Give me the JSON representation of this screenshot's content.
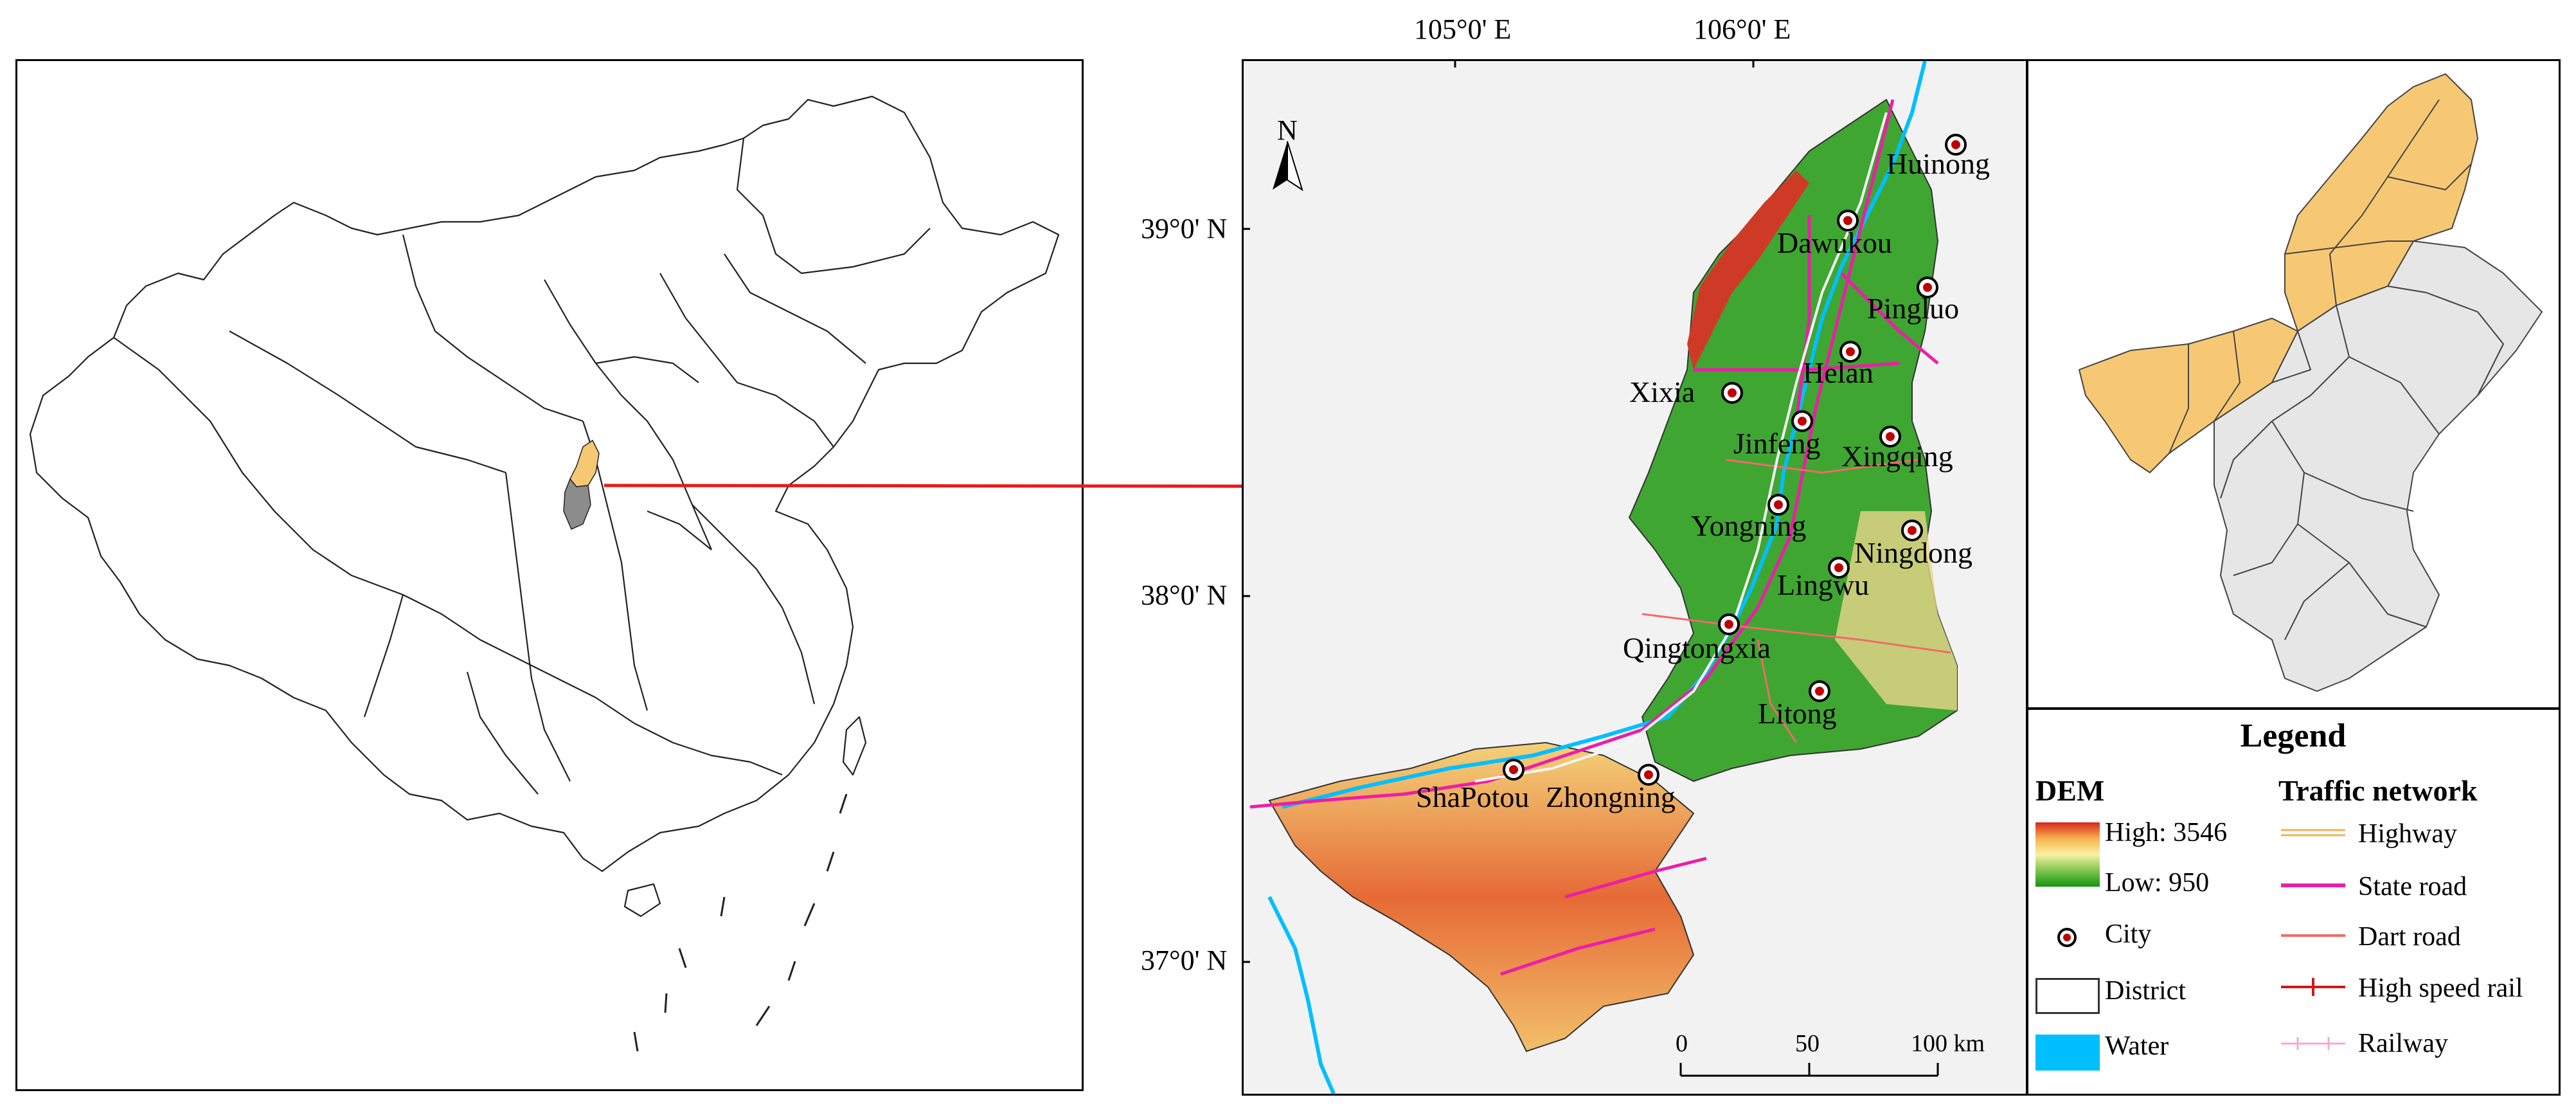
{
  "colors": {
    "highlight": "#f7c873",
    "grey_province": "#8c8c8c",
    "arrow": "#e8191a",
    "dem_high": "#d7261e",
    "dem_mid": "#f8f3a4",
    "dem_low": "#14960f",
    "water": "#00bfff",
    "state_road": "#ec1ea7",
    "dart_road": "#f06a6a",
    "high_speed_rail": "#d01818",
    "railway": "#f5a9d4",
    "highway": "#f0b356",
    "district_fill_grey": "#e6e6e6"
  },
  "map": {
    "north": "N",
    "lon_ticks": [
      "105°0' E",
      "106°0' E"
    ],
    "lat_ticks": [
      "39°0' N",
      "38°0' N",
      "37°0' N"
    ],
    "scale_labels": [
      "0",
      "50",
      "100 km"
    ],
    "cities": [
      "Huinong",
      "Dawukou",
      "Pingluo",
      "Helan",
      "Xixia",
      "Jinfeng",
      "Xingqing",
      "Yongning",
      "Ningdong",
      "Lingwu",
      "Qingtongxia",
      "Litong",
      "ShaPotou",
      "Zhongning"
    ]
  },
  "legend": {
    "title": "Legend",
    "dem_title": "DEM",
    "dem_high": "High: 3546",
    "dem_low": "Low: 950",
    "city": "City",
    "district": "District",
    "water": "Water",
    "traffic_title": "Traffic network",
    "highway": "Highway",
    "state_road": "State road",
    "dart_road": "Dart road",
    "high_speed_rail": "High speed rail",
    "railway": "Railway"
  }
}
